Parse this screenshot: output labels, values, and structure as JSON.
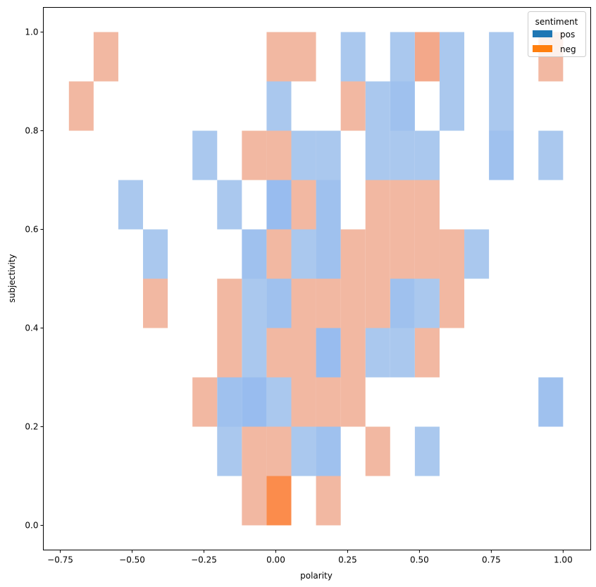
{
  "chart_data": {
    "type": "heatmap",
    "title": "",
    "xlabel": "polarity",
    "ylabel": "subjectivity",
    "xlim": [
      -0.809,
      1.096
    ],
    "ylim": [
      -0.05,
      1.05
    ],
    "grid": false,
    "x_ticks": [
      "−0.75",
      "−0.50",
      "−0.25",
      "0.00",
      "0.25",
      "0.50",
      "0.75",
      "1.00"
    ],
    "x_tick_values": [
      -0.75,
      -0.5,
      -0.25,
      0,
      0.25,
      0.5,
      0.75,
      1.0
    ],
    "y_ticks": [
      "0.0",
      "0.2",
      "0.4",
      "0.6",
      "0.8",
      "1.0"
    ],
    "y_tick_values": [
      0,
      0.2,
      0.4,
      0.6,
      0.8,
      1.0
    ],
    "bin_width_x": 0.086,
    "bin_width_y": 0.1,
    "legend": {
      "title": "sentiment",
      "placement": "top-right",
      "entries": [
        "pos",
        "neg"
      ]
    },
    "colors": {
      "pos": "#1f77b4",
      "neg": "#ff7f0e"
    },
    "series": [
      {
        "name": "pos",
        "cells": [
          {
            "x": 0.226,
            "y": 0.9,
            "count": 1
          },
          {
            "x": 0.398,
            "y": 0.9,
            "count": 1
          },
          {
            "x": 0.57,
            "y": 0.9,
            "count": 1
          },
          {
            "x": 0.742,
            "y": 0.9,
            "count": 1
          },
          {
            "x": -0.032,
            "y": 0.8,
            "count": 1
          },
          {
            "x": 0.312,
            "y": 0.8,
            "count": 1
          },
          {
            "x": 0.398,
            "y": 0.8,
            "count": 2
          },
          {
            "x": 0.57,
            "y": 0.8,
            "count": 1
          },
          {
            "x": 0.742,
            "y": 0.8,
            "count": 1
          },
          {
            "x": -0.29,
            "y": 0.7,
            "count": 1
          },
          {
            "x": 0.054,
            "y": 0.7,
            "count": 1
          },
          {
            "x": 0.14,
            "y": 0.7,
            "count": 1
          },
          {
            "x": 0.312,
            "y": 0.7,
            "count": 1
          },
          {
            "x": 0.398,
            "y": 0.7,
            "count": 1
          },
          {
            "x": 0.484,
            "y": 0.7,
            "count": 1
          },
          {
            "x": 0.742,
            "y": 0.7,
            "count": 2
          },
          {
            "x": 0.914,
            "y": 0.7,
            "count": 1
          },
          {
            "x": -0.548,
            "y": 0.6,
            "count": 1
          },
          {
            "x": -0.204,
            "y": 0.6,
            "count": 1
          },
          {
            "x": -0.032,
            "y": 0.6,
            "count": 3
          },
          {
            "x": 0.14,
            "y": 0.6,
            "count": 2
          },
          {
            "x": -0.462,
            "y": 0.5,
            "count": 1
          },
          {
            "x": -0.118,
            "y": 0.5,
            "count": 2
          },
          {
            "x": 0.054,
            "y": 0.5,
            "count": 1
          },
          {
            "x": 0.14,
            "y": 0.5,
            "count": 2
          },
          {
            "x": 0.656,
            "y": 0.5,
            "count": 1
          },
          {
            "x": -0.118,
            "y": 0.4,
            "count": 1
          },
          {
            "x": -0.032,
            "y": 0.4,
            "count": 2
          },
          {
            "x": 0.398,
            "y": 0.4,
            "count": 2
          },
          {
            "x": 0.484,
            "y": 0.4,
            "count": 1
          },
          {
            "x": -0.118,
            "y": 0.3,
            "count": 1
          },
          {
            "x": 0.14,
            "y": 0.3,
            "count": 3
          },
          {
            "x": 0.312,
            "y": 0.3,
            "count": 1
          },
          {
            "x": 0.398,
            "y": 0.3,
            "count": 1
          },
          {
            "x": -0.204,
            "y": 0.2,
            "count": 2
          },
          {
            "x": -0.118,
            "y": 0.2,
            "count": 3
          },
          {
            "x": -0.032,
            "y": 0.2,
            "count": 1
          },
          {
            "x": 0.914,
            "y": 0.2,
            "count": 2
          },
          {
            "x": -0.204,
            "y": 0.1,
            "count": 1
          },
          {
            "x": 0.054,
            "y": 0.1,
            "count": 1
          },
          {
            "x": 0.14,
            "y": 0.1,
            "count": 2
          },
          {
            "x": 0.484,
            "y": 0.1,
            "count": 1
          }
        ]
      },
      {
        "name": "neg",
        "cells": [
          {
            "x": -0.634,
            "y": 0.9,
            "count": 1
          },
          {
            "x": -0.032,
            "y": 0.9,
            "count": 1
          },
          {
            "x": 0.054,
            "y": 0.9,
            "count": 1
          },
          {
            "x": 0.484,
            "y": 0.9,
            "count": 2
          },
          {
            "x": 0.914,
            "y": 0.9,
            "count": 1
          },
          {
            "x": -0.72,
            "y": 0.8,
            "count": 1
          },
          {
            "x": 0.226,
            "y": 0.8,
            "count": 1
          },
          {
            "x": -0.118,
            "y": 0.7,
            "count": 1
          },
          {
            "x": -0.032,
            "y": 0.7,
            "count": 1
          },
          {
            "x": 0.054,
            "y": 0.6,
            "count": 1
          },
          {
            "x": 0.312,
            "y": 0.6,
            "count": 1
          },
          {
            "x": 0.398,
            "y": 0.6,
            "count": 1
          },
          {
            "x": 0.484,
            "y": 0.6,
            "count": 1
          },
          {
            "x": -0.032,
            "y": 0.5,
            "count": 1
          },
          {
            "x": 0.226,
            "y": 0.5,
            "count": 1
          },
          {
            "x": 0.312,
            "y": 0.5,
            "count": 1
          },
          {
            "x": 0.398,
            "y": 0.5,
            "count": 1
          },
          {
            "x": 0.484,
            "y": 0.5,
            "count": 1
          },
          {
            "x": 0.57,
            "y": 0.5,
            "count": 1
          },
          {
            "x": -0.462,
            "y": 0.4,
            "count": 1
          },
          {
            "x": -0.204,
            "y": 0.4,
            "count": 1
          },
          {
            "x": 0.054,
            "y": 0.4,
            "count": 1
          },
          {
            "x": 0.14,
            "y": 0.4,
            "count": 1
          },
          {
            "x": 0.226,
            "y": 0.4,
            "count": 1
          },
          {
            "x": 0.312,
            "y": 0.4,
            "count": 1
          },
          {
            "x": 0.57,
            "y": 0.4,
            "count": 1
          },
          {
            "x": -0.204,
            "y": 0.3,
            "count": 1
          },
          {
            "x": -0.032,
            "y": 0.3,
            "count": 1
          },
          {
            "x": 0.054,
            "y": 0.3,
            "count": 1
          },
          {
            "x": 0.226,
            "y": 0.3,
            "count": 1
          },
          {
            "x": 0.484,
            "y": 0.3,
            "count": 1
          },
          {
            "x": -0.29,
            "y": 0.2,
            "count": 1
          },
          {
            "x": 0.054,
            "y": 0.2,
            "count": 1
          },
          {
            "x": 0.14,
            "y": 0.2,
            "count": 1
          },
          {
            "x": 0.226,
            "y": 0.2,
            "count": 1
          },
          {
            "x": -0.118,
            "y": 0.1,
            "count": 1
          },
          {
            "x": -0.032,
            "y": 0.1,
            "count": 1
          },
          {
            "x": 0.312,
            "y": 0.1,
            "count": 1
          },
          {
            "x": -0.118,
            "y": 0.0,
            "count": 1
          },
          {
            "x": -0.032,
            "y": 0.0,
            "count": 4
          },
          {
            "x": 0.14,
            "y": 0.0,
            "count": 1
          }
        ]
      }
    ]
  }
}
